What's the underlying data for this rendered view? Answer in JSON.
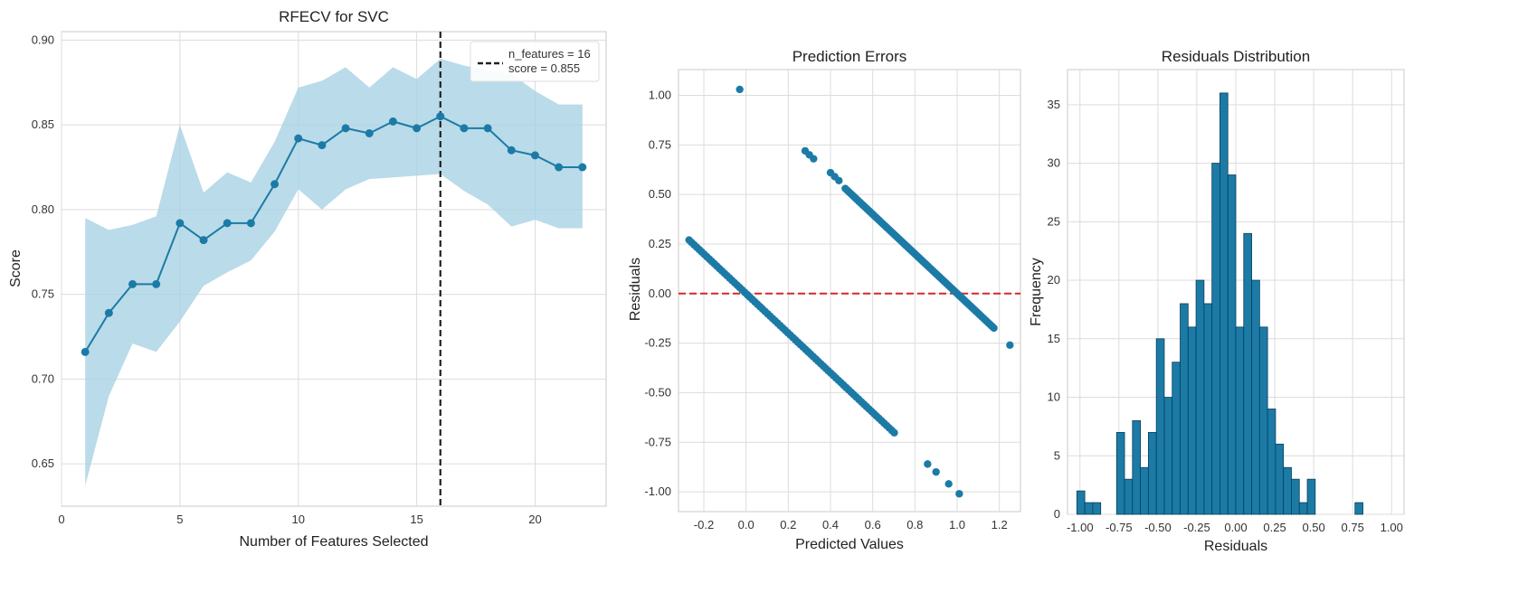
{
  "colors": {
    "main": "#1c7ba6",
    "band": "#a9d2e3",
    "zero_line": "#d62728",
    "bar_edge": "#0b3d57",
    "vline": "#222222"
  },
  "chart_data": [
    {
      "id": "rfecv",
      "type": "line",
      "title": "RFECV for SVC",
      "xlabel": "Number of Features Selected",
      "ylabel": "Score",
      "xlim": [
        0,
        23
      ],
      "ylim": [
        0.625,
        0.905
      ],
      "xticks": [
        0,
        5,
        10,
        15,
        20
      ],
      "yticks": [
        0.65,
        0.7,
        0.75,
        0.8,
        0.85,
        0.9
      ],
      "x": [
        1,
        2,
        3,
        4,
        5,
        6,
        7,
        8,
        9,
        10,
        11,
        12,
        13,
        14,
        15,
        16,
        17,
        18,
        19,
        20,
        21,
        22
      ],
      "y": [
        0.716,
        0.739,
        0.756,
        0.756,
        0.792,
        0.782,
        0.792,
        0.792,
        0.815,
        0.842,
        0.838,
        0.848,
        0.845,
        0.852,
        0.848,
        0.855,
        0.848,
        0.848,
        0.835,
        0.832,
        0.825,
        0.825
      ],
      "upper": [
        0.795,
        0.788,
        0.791,
        0.796,
        0.85,
        0.81,
        0.822,
        0.816,
        0.84,
        0.872,
        0.876,
        0.884,
        0.872,
        0.884,
        0.877,
        0.889,
        0.885,
        0.882,
        0.88,
        0.87,
        0.862,
        0.862
      ],
      "lower": [
        0.637,
        0.69,
        0.721,
        0.716,
        0.734,
        0.755,
        0.763,
        0.77,
        0.787,
        0.812,
        0.8,
        0.812,
        0.818,
        0.819,
        0.82,
        0.821,
        0.811,
        0.803,
        0.79,
        0.794,
        0.789,
        0.789
      ],
      "selected_n": 16,
      "legend": {
        "text1": "n_features = 16",
        "text2": "score = 0.855",
        "position": "top-right"
      },
      "grid": true
    },
    {
      "id": "prediction_errors",
      "type": "scatter",
      "title": "Prediction Errors",
      "xlabel": "Predicted Values",
      "ylabel": "Residuals",
      "xlim": [
        -0.32,
        1.3
      ],
      "ylim": [
        -1.1,
        1.13
      ],
      "xticks": [
        -0.2,
        0.0,
        0.2,
        0.4,
        0.6,
        0.8,
        1.0,
        1.2
      ],
      "yticks": [
        -1.0,
        -0.75,
        -0.5,
        -0.25,
        0.0,
        0.25,
        0.5,
        0.75,
        1.0
      ],
      "line_a": {
        "x_from": -0.27,
        "x_to": 0.71,
        "intercept": 0.0,
        "slope": -1.0,
        "step": 0.012
      },
      "line_b": {
        "x_from": 0.47,
        "x_to": 1.18,
        "intercept": 1.0,
        "slope": -1.0,
        "step": 0.008
      },
      "extra_points": [
        [
          -0.03,
          1.03
        ],
        [
          0.28,
          0.72
        ],
        [
          0.3,
          0.7
        ],
        [
          0.32,
          0.68
        ],
        [
          0.4,
          0.61
        ],
        [
          0.42,
          0.59
        ],
        [
          0.44,
          0.57
        ],
        [
          0.86,
          -0.86
        ],
        [
          0.9,
          -0.9
        ],
        [
          0.96,
          -0.96
        ],
        [
          1.01,
          -1.01
        ],
        [
          1.25,
          -0.26
        ]
      ],
      "zero_line": 0.0,
      "grid": true
    },
    {
      "id": "residuals_distribution",
      "type": "bar",
      "title": "Residuals Distribution",
      "xlabel": "Residuals",
      "ylabel": "Frequency",
      "xlim": [
        -1.08,
        1.08
      ],
      "ylim": [
        0,
        38
      ],
      "xticks": [
        -1.0,
        -0.75,
        -0.5,
        -0.25,
        0.0,
        0.25,
        0.5,
        0.75,
        1.0
      ],
      "xtick_labels": [
        "-1.00",
        "-0.75",
        "-0.50",
        "-0.25",
        "0.00",
        "0.25",
        "0.50",
        "0.75",
        "1.00"
      ],
      "yticks": [
        0,
        5,
        10,
        15,
        20,
        25,
        30,
        35
      ],
      "bin_start": -1.02,
      "bin_width": 0.051,
      "values": [
        2,
        1,
        1,
        0,
        0,
        7,
        3,
        8,
        4,
        7,
        15,
        10,
        13,
        18,
        16,
        20,
        18,
        30,
        36,
        29,
        16,
        24,
        20,
        16,
        9,
        6,
        4,
        3,
        1,
        3,
        0,
        0,
        0,
        0,
        0,
        1
      ],
      "grid": true
    }
  ]
}
